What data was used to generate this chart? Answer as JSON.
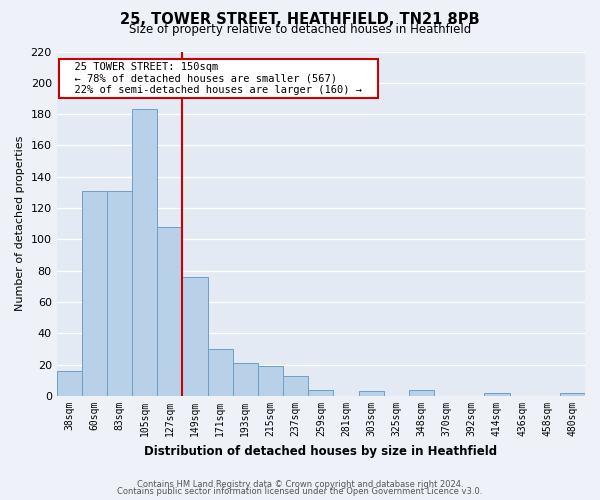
{
  "title": "25, TOWER STREET, HEATHFIELD, TN21 8PB",
  "subtitle": "Size of property relative to detached houses in Heathfield",
  "xlabel": "Distribution of detached houses by size in Heathfield",
  "ylabel": "Number of detached properties",
  "bar_labels": [
    "38sqm",
    "60sqm",
    "83sqm",
    "105sqm",
    "127sqm",
    "149sqm",
    "171sqm",
    "193sqm",
    "215sqm",
    "237sqm",
    "259sqm",
    "281sqm",
    "303sqm",
    "325sqm",
    "348sqm",
    "370sqm",
    "392sqm",
    "414sqm",
    "436sqm",
    "458sqm",
    "480sqm"
  ],
  "bar_values": [
    16,
    131,
    131,
    183,
    108,
    76,
    30,
    21,
    19,
    13,
    4,
    0,
    3,
    0,
    4,
    0,
    0,
    2,
    0,
    0,
    2
  ],
  "bar_color": "#b8d0e8",
  "bar_edge_color": "#6aa0c8",
  "ylim": [
    0,
    220
  ],
  "yticks": [
    0,
    20,
    40,
    60,
    80,
    100,
    120,
    140,
    160,
    180,
    200,
    220
  ],
  "vline_x_index": 5,
  "vline_color": "#cc0000",
  "annotation_title": "25 TOWER STREET: 150sqm",
  "annotation_line1": "← 78% of detached houses are smaller (567)",
  "annotation_line2": "22% of semi-detached houses are larger (160) →",
  "annotation_box_color": "#cc0000",
  "footer_line1": "Contains HM Land Registry data © Crown copyright and database right 2024.",
  "footer_line2": "Contains public sector information licensed under the Open Government Licence v3.0.",
  "bg_color": "#eef2f8",
  "plot_bg_color": "#e4eaf4"
}
